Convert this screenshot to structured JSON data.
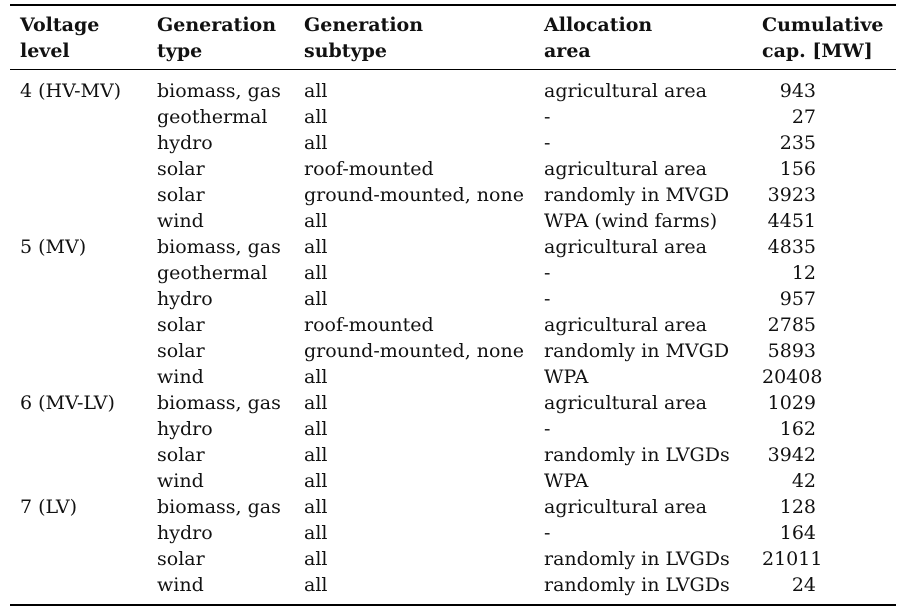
{
  "headers": [
    [
      "Voltage",
      "level"
    ],
    [
      "Generation",
      "type"
    ],
    [
      "Generation",
      "subtype"
    ],
    [
      "Allocation",
      "area"
    ],
    [
      "Cumulative",
      "cap. [MW]"
    ]
  ],
  "rows": [
    {
      "level": "4 (HV-MV)",
      "type": "biomass, gas",
      "subtype": "all",
      "area": "agricultural area",
      "cap": "943"
    },
    {
      "level": "",
      "type": "geothermal",
      "subtype": "all",
      "area": "-",
      "cap": "27"
    },
    {
      "level": "",
      "type": "hydro",
      "subtype": "all",
      "area": "-",
      "cap": "235"
    },
    {
      "level": "",
      "type": "solar",
      "subtype": "roof-mounted",
      "area": "agricultural area",
      "cap": "156"
    },
    {
      "level": "",
      "type": "solar",
      "subtype": "ground-mounted, none",
      "area": "randomly in MVGD",
      "cap": "3923"
    },
    {
      "level": "",
      "type": "wind",
      "subtype": "all",
      "area": "WPA (wind farms)",
      "cap": "4451"
    },
    {
      "level": "5 (MV)",
      "type": "biomass, gas",
      "subtype": "all",
      "area": "agricultural area",
      "cap": "4835"
    },
    {
      "level": "",
      "type": "geothermal",
      "subtype": "all",
      "area": "-",
      "cap": "12"
    },
    {
      "level": "",
      "type": "hydro",
      "subtype": "all",
      "area": "-",
      "cap": "957"
    },
    {
      "level": "",
      "type": "solar",
      "subtype": "roof-mounted",
      "area": "agricultural area",
      "cap": "2785"
    },
    {
      "level": "",
      "type": "solar",
      "subtype": "ground-mounted, none",
      "area": "randomly in MVGD",
      "cap": "5893"
    },
    {
      "level": "",
      "type": "wind",
      "subtype": "all",
      "area": "WPA",
      "cap": "20408"
    },
    {
      "level": "6 (MV-LV)",
      "type": "biomass, gas",
      "subtype": "all",
      "area": "agricultural area",
      "cap": "1029"
    },
    {
      "level": "",
      "type": "hydro",
      "subtype": "all",
      "area": "-",
      "cap": "162"
    },
    {
      "level": "",
      "type": "solar",
      "subtype": "all",
      "area": "randomly in LVGDs",
      "cap": "3942"
    },
    {
      "level": "",
      "type": "wind",
      "subtype": "all",
      "area": "WPA",
      "cap": "42"
    },
    {
      "level": "7 (LV)",
      "type": "biomass, gas",
      "subtype": "all",
      "area": "agricultural area",
      "cap": "128"
    },
    {
      "level": "",
      "type": "hydro",
      "subtype": "all",
      "area": "-",
      "cap": "164"
    },
    {
      "level": "",
      "type": "solar",
      "subtype": "all",
      "area": "randomly in LVGDs",
      "cap": "21011"
    },
    {
      "level": "",
      "type": "wind",
      "subtype": "all",
      "area": "randomly in LVGDs",
      "cap": "24"
    }
  ]
}
